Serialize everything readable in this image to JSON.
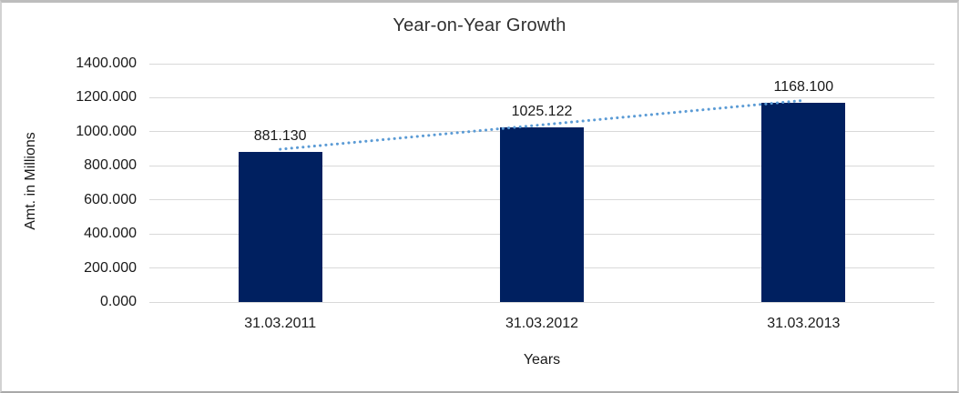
{
  "chart_data": {
    "type": "bar",
    "title": "Year-on-Year Growth",
    "xlabel": "Years",
    "ylabel": "Amt. in Millions",
    "categories": [
      "31.03.2011",
      "31.03.2012",
      "31.03.2013"
    ],
    "values": [
      881.13,
      1025.122,
      1168.1
    ],
    "value_labels": [
      "881.130",
      "1025.122",
      "1168.100"
    ],
    "ylim": [
      0,
      1400
    ],
    "ytick_labels": [
      "0.000",
      "200.000",
      "400.000",
      "600.000",
      "800.000",
      "1000.000",
      "1200.000",
      "1400.000"
    ],
    "grid": true,
    "legend_position": "none",
    "bar_color": "#002060",
    "gridline_color": "#d9d9d9",
    "text_color": "#1a1a1a",
    "trendline": {
      "type": "linear",
      "line_style": "dotted",
      "color": "#5b9bd5"
    }
  }
}
